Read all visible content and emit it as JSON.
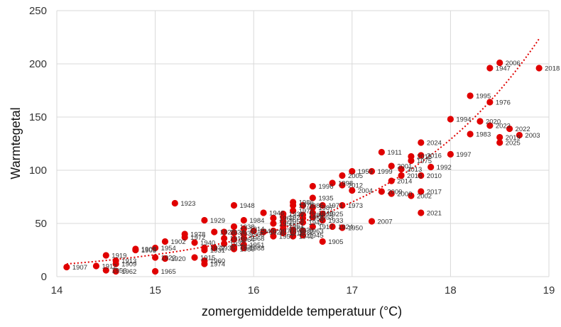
{
  "chart_data": {
    "type": "scatter",
    "xlabel": "zomergemiddelde temperatuur (°C)",
    "ylabel": "Warmtegetal",
    "xlim": [
      14,
      19
    ],
    "ylim": [
      0,
      250
    ],
    "xticks": [
      "14",
      "15",
      "16",
      "17",
      "18",
      "19"
    ],
    "yticks": [
      "0",
      "50",
      "100",
      "150",
      "200",
      "250"
    ],
    "grid": "vertical and horizontal",
    "marker_color": "#e00000",
    "trendline": {
      "type": "exponential",
      "style": "dotted",
      "color": "#e00000",
      "x_start": 14.1,
      "x_end": 18.9
    },
    "points": [
      {
        "label": "1907",
        "x": 14.1,
        "y": 9
      },
      {
        "label": "1919",
        "x": 14.5,
        "y": 20
      },
      {
        "label": "1913",
        "x": 14.6,
        "y": 15
      },
      {
        "label": "1909",
        "x": 14.6,
        "y": 12
      },
      {
        "label": "1912",
        "x": 14.4,
        "y": 10
      },
      {
        "label": "1956",
        "x": 14.5,
        "y": 6
      },
      {
        "label": "1962",
        "x": 14.6,
        "y": 5
      },
      {
        "label": "1965",
        "x": 15.0,
        "y": 5
      },
      {
        "label": "1908",
        "x": 14.8,
        "y": 26
      },
      {
        "label": "1903",
        "x": 14.8,
        "y": 25
      },
      {
        "label": "1954",
        "x": 15.0,
        "y": 27
      },
      {
        "label": "1922",
        "x": 15.0,
        "y": 18
      },
      {
        "label": "1920",
        "x": 15.1,
        "y": 17
      },
      {
        "label": "1902",
        "x": 15.1,
        "y": 33
      },
      {
        "label": "1923",
        "x": 15.2,
        "y": 69
      },
      {
        "label": "1978",
        "x": 15.3,
        "y": 40
      },
      {
        "label": "1972",
        "x": 15.3,
        "y": 37
      },
      {
        "label": "1940",
        "x": 15.4,
        "y": 32
      },
      {
        "label": "1915",
        "x": 15.4,
        "y": 18
      },
      {
        "label": "1929",
        "x": 15.5,
        "y": 53
      },
      {
        "label": "1960",
        "x": 15.5,
        "y": 15
      },
      {
        "label": "1974",
        "x": 15.5,
        "y": 12
      },
      {
        "label": "1977",
        "x": 15.5,
        "y": 27
      },
      {
        "label": "1931",
        "x": 15.5,
        "y": 25
      },
      {
        "label": "1936",
        "x": 15.6,
        "y": 27
      },
      {
        "label": "1926",
        "x": 15.6,
        "y": 42
      },
      {
        "label": "1948",
        "x": 15.8,
        "y": 67
      },
      {
        "label": "1984",
        "x": 15.9,
        "y": 53
      },
      {
        "label": "1938",
        "x": 15.8,
        "y": 47
      },
      {
        "label": "1934",
        "x": 15.7,
        "y": 42
      },
      {
        "label": "1937",
        "x": 15.8,
        "y": 41
      },
      {
        "label": "1916",
        "x": 15.7,
        "y": 36
      },
      {
        "label": "1964",
        "x": 15.8,
        "y": 35
      },
      {
        "label": "1932",
        "x": 15.7,
        "y": 31
      },
      {
        "label": "1935",
        "x": 15.8,
        "y": 28
      },
      {
        "label": "1980",
        "x": 15.8,
        "y": 26
      },
      {
        "label": "1966",
        "x": 15.9,
        "y": 40
      },
      {
        "label": "1968",
        "x": 15.9,
        "y": 36
      },
      {
        "label": "1951",
        "x": 15.9,
        "y": 30
      },
      {
        "label": "1988",
        "x": 15.9,
        "y": 27
      },
      {
        "label": "1914",
        "x": 15.9,
        "y": 45
      },
      {
        "label": "1943",
        "x": 16.0,
        "y": 43
      },
      {
        "label": "1928",
        "x": 16.1,
        "y": 42
      },
      {
        "label": "1946",
        "x": 16.1,
        "y": 60
      },
      {
        "label": "1969",
        "x": 16.2,
        "y": 55
      },
      {
        "label": "1950",
        "x": 16.2,
        "y": 50
      },
      {
        "label": "1967",
        "x": 16.3,
        "y": 45
      },
      {
        "label": "1970",
        "x": 16.2,
        "y": 43
      },
      {
        "label": "1918",
        "x": 16.3,
        "y": 41
      },
      {
        "label": "1957",
        "x": 16.2,
        "y": 38
      },
      {
        "label": "1939",
        "x": 16.3,
        "y": 59
      },
      {
        "label": "1921",
        "x": 16.3,
        "y": 56
      },
      {
        "label": "1958",
        "x": 16.3,
        "y": 52
      },
      {
        "label": "1961",
        "x": 16.3,
        "y": 48
      },
      {
        "label": "1930",
        "x": 16.4,
        "y": 44
      },
      {
        "label": "1963",
        "x": 16.5,
        "y": 43
      },
      {
        "label": "1927",
        "x": 16.4,
        "y": 42
      },
      {
        "label": "1945",
        "x": 16.5,
        "y": 39
      },
      {
        "label": "1941",
        "x": 16.4,
        "y": 38
      },
      {
        "label": "1976b",
        "x": 16.4,
        "y": 62
      },
      {
        "label": "1986",
        "x": 16.4,
        "y": 70
      },
      {
        "label": "1979",
        "x": 16.4,
        "y": 67
      },
      {
        "label": "1989",
        "x": 16.5,
        "y": 58
      },
      {
        "label": "1955",
        "x": 16.5,
        "y": 55
      },
      {
        "label": "1942",
        "x": 16.5,
        "y": 51
      },
      {
        "label": "1944",
        "x": 16.6,
        "y": 60
      },
      {
        "label": "1953",
        "x": 16.6,
        "y": 56
      },
      {
        "label": "1933",
        "x": 16.7,
        "y": 53
      },
      {
        "label": "1925",
        "x": 16.7,
        "y": 59
      },
      {
        "label": "1917",
        "x": 16.6,
        "y": 47
      },
      {
        "label": "1985",
        "x": 16.5,
        "y": 67
      },
      {
        "label": "1987",
        "x": 16.6,
        "y": 65
      },
      {
        "label": "1905",
        "x": 16.7,
        "y": 33
      },
      {
        "label": "1996",
        "x": 16.6,
        "y": 85
      },
      {
        "label": "1935b",
        "x": 16.6,
        "y": 74
      },
      {
        "label": "1971",
        "x": 16.7,
        "y": 67
      },
      {
        "label": "1973",
        "x": 16.9,
        "y": 67
      },
      {
        "label": "1924",
        "x": 16.8,
        "y": 47
      },
      {
        "label": "1950b",
        "x": 16.9,
        "y": 46
      },
      {
        "label": "1998",
        "x": 16.8,
        "y": 88
      },
      {
        "label": "2012",
        "x": 16.9,
        "y": 86
      },
      {
        "label": "2004",
        "x": 17.0,
        "y": 81
      },
      {
        "label": "2005",
        "x": 16.9,
        "y": 95
      },
      {
        "label": "1959",
        "x": 17.0,
        "y": 99
      },
      {
        "label": "1999",
        "x": 17.2,
        "y": 99
      },
      {
        "label": "2007",
        "x": 17.2,
        "y": 52
      },
      {
        "label": "1911",
        "x": 17.3,
        "y": 117
      },
      {
        "label": "2009",
        "x": 17.3,
        "y": 80
      },
      {
        "label": "2000",
        "x": 17.4,
        "y": 78
      },
      {
        "label": "2001",
        "x": 17.4,
        "y": 104
      },
      {
        "label": "2013",
        "x": 17.5,
        "y": 101
      },
      {
        "label": "2014",
        "x": 17.4,
        "y": 90
      },
      {
        "label": "2018b",
        "x": 17.5,
        "y": 95
      },
      {
        "label": "1975",
        "x": 17.6,
        "y": 109
      },
      {
        "label": "2015",
        "x": 17.6,
        "y": 113
      },
      {
        "label": "2016",
        "x": 17.7,
        "y": 114
      },
      {
        "label": "2024",
        "x": 17.7,
        "y": 126
      },
      {
        "label": "1992",
        "x": 17.8,
        "y": 103
      },
      {
        "label": "2010",
        "x": 17.7,
        "y": 95
      },
      {
        "label": "2002",
        "x": 17.6,
        "y": 76
      },
      {
        "label": "2017",
        "x": 17.7,
        "y": 80
      },
      {
        "label": "2021",
        "x": 17.7,
        "y": 60
      },
      {
        "label": "1997",
        "x": 18.0,
        "y": 115
      },
      {
        "label": "1994",
        "x": 18.0,
        "y": 148
      },
      {
        "label": "1983",
        "x": 18.2,
        "y": 134
      },
      {
        "label": "1995",
        "x": 18.2,
        "y": 170
      },
      {
        "label": "2020",
        "x": 18.3,
        "y": 146
      },
      {
        "label": "2023",
        "x": 18.4,
        "y": 142
      },
      {
        "label": "1976",
        "x": 18.4,
        "y": 164
      },
      {
        "label": "1947",
        "x": 18.4,
        "y": 196
      },
      {
        "label": "2006",
        "x": 18.5,
        "y": 201
      },
      {
        "label": "2019",
        "x": 18.5,
        "y": 131
      },
      {
        "label": "2025",
        "x": 18.5,
        "y": 126
      },
      {
        "label": "2022",
        "x": 18.6,
        "y": 139
      },
      {
        "label": "2003",
        "x": 18.7,
        "y": 133
      },
      {
        "label": "2018",
        "x": 18.9,
        "y": 196
      }
    ]
  }
}
